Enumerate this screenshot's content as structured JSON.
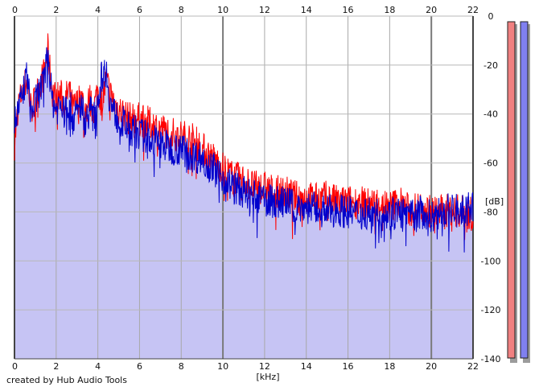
{
  "chart_data": {
    "type": "area",
    "xlabel": "[kHz]",
    "ylabel": "[dB]",
    "xlim": [
      0,
      22
    ],
    "ylim": [
      -140,
      0
    ],
    "x_ticks": [
      0,
      2,
      4,
      6,
      8,
      10,
      12,
      14,
      16,
      18,
      20,
      22
    ],
    "y_ticks": [
      0,
      -20,
      -40,
      -60,
      -80,
      -100,
      -120,
      -140
    ],
    "x_tick_labels": [
      "0",
      "2",
      "4",
      "6",
      "8",
      "10",
      "12",
      "14",
      "16",
      "18",
      "20",
      "22"
    ],
    "y_tick_labels": [
      "0",
      "-20",
      "-40",
      "-60",
      "-80",
      "-100",
      "-120",
      "-140"
    ],
    "grid": true,
    "highlight_x": [
      10,
      20
    ],
    "series": [
      {
        "color": "#ff0000",
        "x": [
          0,
          0.2,
          0.4,
          0.6,
          0.8,
          1.0,
          1.2,
          1.4,
          1.6,
          1.8,
          2.0,
          2.2,
          2.4,
          2.6,
          2.8,
          3.0,
          3.2,
          3.4,
          3.6,
          3.8,
          4.0,
          4.2,
          4.4,
          4.6,
          4.8,
          5.0,
          5.5,
          6.0,
          6.5,
          7.0,
          7.5,
          8.0,
          8.5,
          9.0,
          9.5,
          10.0,
          10.5,
          11.0,
          11.5,
          12.0,
          12.5,
          13.0,
          13.5,
          14.0,
          14.5,
          15.0,
          15.5,
          16.0,
          16.5,
          17.0,
          17.5,
          18.0,
          18.5,
          19.0,
          19.5,
          20.0,
          20.5,
          21.0,
          21.5,
          22.0
        ],
        "y": [
          -52,
          -36,
          -30,
          -26,
          -38,
          -34,
          -28,
          -24,
          -14,
          -30,
          -34,
          -32,
          -36,
          -30,
          -38,
          -36,
          -32,
          -40,
          -34,
          -38,
          -30,
          -36,
          -26,
          -32,
          -36,
          -38,
          -42,
          -42,
          -44,
          -46,
          -48,
          -49,
          -50,
          -54,
          -58,
          -62,
          -66,
          -67,
          -70,
          -70,
          -72,
          -72,
          -74,
          -74,
          -75,
          -74,
          -76,
          -76,
          -76,
          -77,
          -76,
          -78,
          -76,
          -80,
          -78,
          -80,
          -80,
          -79,
          -80,
          -81
        ]
      },
      {
        "color": "#0000cc",
        "x": [
          0,
          0.2,
          0.4,
          0.6,
          0.8,
          1.0,
          1.2,
          1.4,
          1.6,
          1.8,
          2.0,
          2.2,
          2.4,
          2.6,
          2.8,
          3.0,
          3.2,
          3.4,
          3.6,
          3.8,
          4.0,
          4.2,
          4.4,
          4.6,
          4.8,
          5.0,
          5.5,
          6.0,
          6.5,
          7.0,
          7.5,
          8.0,
          8.5,
          9.0,
          9.5,
          10.0,
          10.5,
          11.0,
          11.5,
          12.0,
          12.5,
          13.0,
          13.5,
          14.0,
          14.5,
          15.0,
          15.5,
          16.0,
          16.5,
          17.0,
          17.5,
          18.0,
          18.5,
          19.0,
          19.5,
          20.0,
          20.5,
          21.0,
          21.5,
          22.0
        ],
        "y": [
          -44,
          -38,
          -32,
          -24,
          -40,
          -36,
          -30,
          -28,
          -14,
          -34,
          -38,
          -36,
          -40,
          -34,
          -42,
          -40,
          -36,
          -44,
          -38,
          -42,
          -34,
          -24,
          -22,
          -36,
          -40,
          -42,
          -46,
          -48,
          -50,
          -52,
          -54,
          -54,
          -57,
          -58,
          -62,
          -66,
          -70,
          -72,
          -74,
          -75,
          -76,
          -76,
          -78,
          -78,
          -79,
          -80,
          -79,
          -80,
          -81,
          -80,
          -81,
          -81,
          -80,
          -82,
          -80,
          -82,
          -80,
          -79,
          -80,
          -78
        ]
      }
    ],
    "level_meters": [
      {
        "color": "#f08080",
        "level_db": 0
      },
      {
        "color": "#8080f0",
        "level_db": 0
      }
    ]
  },
  "footer": {
    "credit": "created by Hub Audio Tools"
  }
}
